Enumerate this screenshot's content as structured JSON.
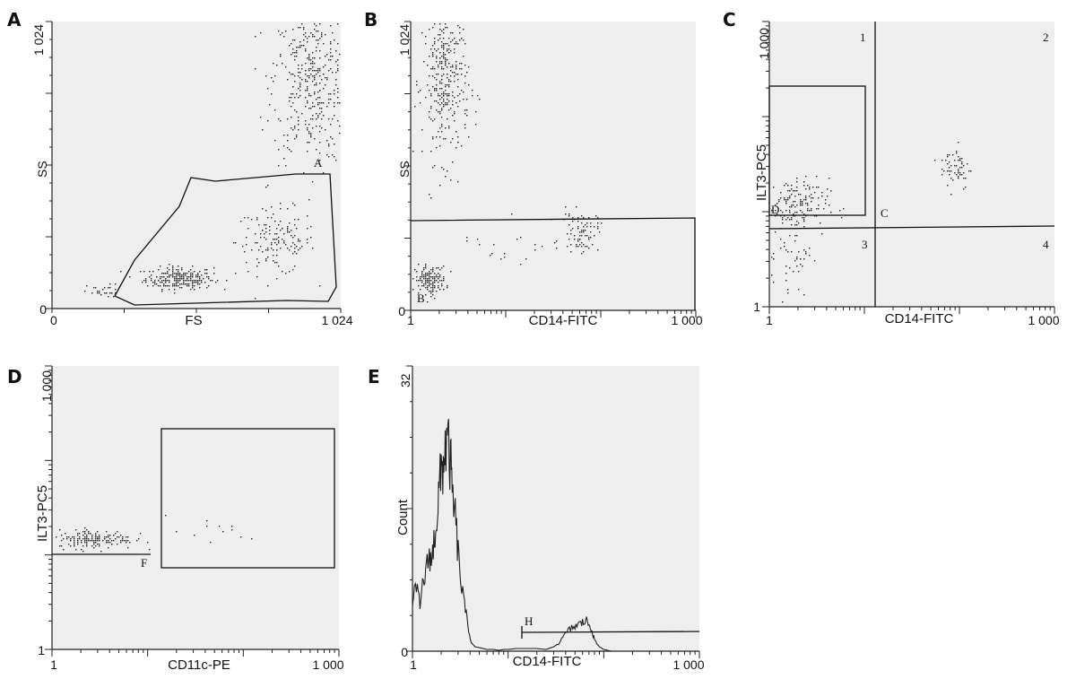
{
  "chart_data": [
    {
      "panel": "A",
      "type": "scatter",
      "xlabel": "FS",
      "ylabel": "SS",
      "x_ticklabels": [
        "0",
        "1 024"
      ],
      "y_ticklabels": [
        "0",
        "1 024"
      ],
      "y_mid_ticklabel": "SS",
      "xlim": [
        0,
        1024
      ],
      "ylim": [
        0,
        1024
      ],
      "gates": [
        {
          "label": "A",
          "shape": "polygon"
        }
      ],
      "clusters": [
        {
          "x": 450,
          "y": 110,
          "spread_x": 60,
          "spread_y": 20,
          "count": 260
        },
        {
          "x": 790,
          "y": 240,
          "spread_x": 70,
          "spread_y": 60,
          "count": 150
        },
        {
          "x": 920,
          "y": 820,
          "spread_x": 70,
          "spread_y": 150,
          "count": 420
        },
        {
          "x": 180,
          "y": 60,
          "spread_x": 30,
          "spread_y": 15,
          "count": 30
        }
      ]
    },
    {
      "panel": "B",
      "type": "scatter",
      "xlabel": "CD14-FITC",
      "ylabel": "SS",
      "x_ticklabels": [
        "1",
        "1 000"
      ],
      "y_ticklabels": [
        "0",
        "1 024"
      ],
      "x_scale": "log",
      "xlim": [
        1,
        1000
      ],
      "ylim": [
        0,
        1024
      ],
      "gates": [
        {
          "label": "B",
          "shape": "rectangle"
        }
      ],
      "clusters": [
        {
          "x": 1.6,
          "y": 110,
          "spread_x": 0.08,
          "spread_y": 25,
          "count": 160
        },
        {
          "x": 2.3,
          "y": 810,
          "spread_x": 0.12,
          "spread_y": 140,
          "count": 340
        },
        {
          "x": 60,
          "y": 280,
          "spread_x": 0.1,
          "spread_y": 35,
          "count": 80
        },
        {
          "x": 12,
          "y": 250,
          "spread_x": 0.3,
          "spread_y": 60,
          "count": 20
        }
      ]
    },
    {
      "panel": "C",
      "type": "scatter",
      "xlabel": "CD14-FITC",
      "ylabel": "ILT3-PC5",
      "x_ticklabels": [
        "1",
        "1 000"
      ],
      "y_ticklabels": [
        "1",
        "1 000"
      ],
      "x_scale": "log",
      "y_scale": "log",
      "xlim": [
        1,
        1000
      ],
      "ylim": [
        1,
        1000
      ],
      "gates": [
        {
          "label": "D",
          "shape": "rectangle"
        },
        {
          "label": "C",
          "shape": "quadrant"
        }
      ],
      "quadrant_labels": [
        "1",
        "2",
        "3",
        "4"
      ],
      "clusters": [
        {
          "x": 1.8,
          "y": 12,
          "spread_x": 0.18,
          "spread_y": 0.14,
          "count": 150
        },
        {
          "x": 1.6,
          "y": 4,
          "spread_x": 0.12,
          "spread_y": 0.25,
          "count": 60
        },
        {
          "x": 90,
          "y": 30,
          "spread_x": 0.08,
          "spread_y": 0.12,
          "count": 60
        }
      ]
    },
    {
      "panel": "D",
      "type": "scatter",
      "xlabel": "CD11c-PE",
      "ylabel": "ILT3-PC5",
      "x_ticklabels": [
        "1",
        "1 000"
      ],
      "y_ticklabels": [
        "1",
        "1 000"
      ],
      "x_scale": "log",
      "y_scale": "log",
      "xlim": [
        1,
        1000
      ],
      "ylim": [
        1,
        1000
      ],
      "gates": [
        {
          "label": "F",
          "shape": "rectangle"
        }
      ],
      "clusters": [
        {
          "x": 2.8,
          "y": 15,
          "spread_x": 0.2,
          "spread_y": 0.05,
          "count": 170
        },
        {
          "x": 40,
          "y": 18,
          "spread_x": 0.3,
          "spread_y": 0.08,
          "count": 12
        }
      ]
    },
    {
      "panel": "E",
      "type": "line",
      "xlabel": "CD14-FITC",
      "ylabel": "Count",
      "x_ticklabels": [
        "1",
        "1 000"
      ],
      "y_ticklabels": [
        "0",
        "32"
      ],
      "x_scale": "log",
      "xlim": [
        1,
        1000
      ],
      "ylim": [
        0,
        32
      ],
      "gates": [
        {
          "label": "H",
          "shape": "marker"
        }
      ],
      "x": [
        1.0,
        1.1,
        1.2,
        1.3,
        1.4,
        1.5,
        1.6,
        1.7,
        1.8,
        1.9,
        2.0,
        2.1,
        2.2,
        2.35,
        2.5,
        2.6,
        2.8,
        3.0,
        3.2,
        3.5,
        3.8,
        4.1,
        4.5,
        5.0,
        5.5,
        6.0,
        7.0,
        8.0,
        9.0,
        10,
        12,
        15,
        20,
        25,
        30,
        35,
        40,
        45,
        50,
        55,
        60,
        65,
        70,
        75,
        80,
        90,
        100,
        120
      ],
      "values": [
        6,
        7,
        5,
        8,
        9,
        11,
        10,
        13,
        15,
        18,
        20,
        21,
        23,
        23,
        21,
        18,
        15,
        11,
        8,
        5,
        3,
        1,
        0.5,
        0.4,
        0.3,
        0.2,
        0.2,
        0.1,
        0.2,
        0.2,
        0.3,
        0.3,
        0.3,
        0.2,
        0.5,
        1,
        2,
        2.5,
        2.8,
        3,
        3.2,
        3.5,
        3,
        2.5,
        1.2,
        0.5,
        0.2,
        0
      ]
    }
  ]
}
